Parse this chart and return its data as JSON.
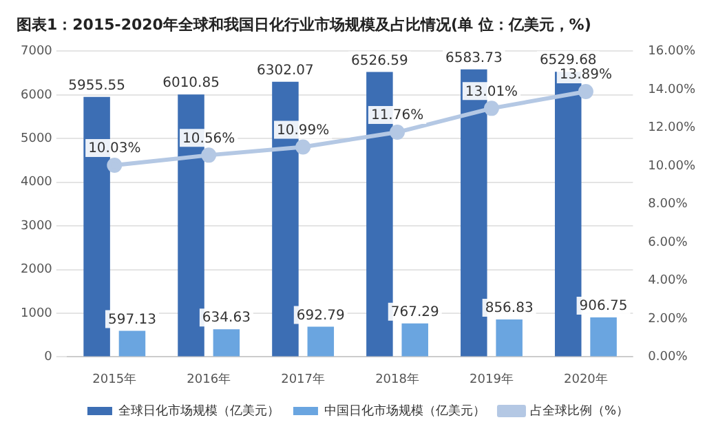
{
  "chart_data": {
    "type": "bar",
    "title": "图表1：2015-2020年全球和我国日化行业市场规模及占比情况(单 位：亿美元，%)",
    "categories": [
      "2015年",
      "2016年",
      "2017年",
      "2018年",
      "2019年",
      "2020年"
    ],
    "series": [
      {
        "name": "全球日化市场规模（亿美元）",
        "color": "#3c6eb4",
        "values": [
          5955.55,
          6010.85,
          6302.07,
          6526.59,
          6583.73,
          6529.68
        ],
        "value_labels": [
          "5955.55",
          "6010.85",
          "6302.07",
          "6526.59",
          "6583.73",
          "6529.68"
        ]
      },
      {
        "name": "中国日化市场规模（亿美元）",
        "color": "#6aa5e0",
        "values": [
          597.13,
          634.63,
          692.79,
          767.29,
          856.83,
          906.75
        ],
        "value_labels": [
          "597.13",
          "634.63",
          "692.79",
          "767.29",
          "856.83",
          "906.75"
        ]
      },
      {
        "name": "占全球比例（%）",
        "type": "line",
        "axis": "y2",
        "color": "#b4c8e4",
        "marker": "circle",
        "values": [
          10.03,
          10.56,
          10.99,
          11.76,
          13.01,
          13.89
        ],
        "value_labels": [
          "10.03%",
          "10.56%",
          "10.99%",
          "11.76%",
          "13.01%",
          "13.89%"
        ]
      }
    ],
    "ylim": [
      0,
      7000
    ],
    "yticks": [
      0,
      1000,
      2000,
      3000,
      4000,
      5000,
      6000,
      7000
    ],
    "y2lim": [
      0,
      16
    ],
    "y2ticks": [
      {
        "value": 0,
        "label": "0.00%"
      },
      {
        "value": 2,
        "label": "2.00%"
      },
      {
        "value": 4,
        "label": "4.00%"
      },
      {
        "value": 6,
        "label": "6.00%"
      },
      {
        "value": 8,
        "label": "8.00%"
      },
      {
        "value": 10,
        "label": "10.00%"
      },
      {
        "value": 12,
        "label": "12.00%"
      },
      {
        "value": 14,
        "label": "14.00%"
      },
      {
        "value": 16,
        "label": "16.00%"
      }
    ],
    "grid": "y",
    "legend": "bottom"
  }
}
